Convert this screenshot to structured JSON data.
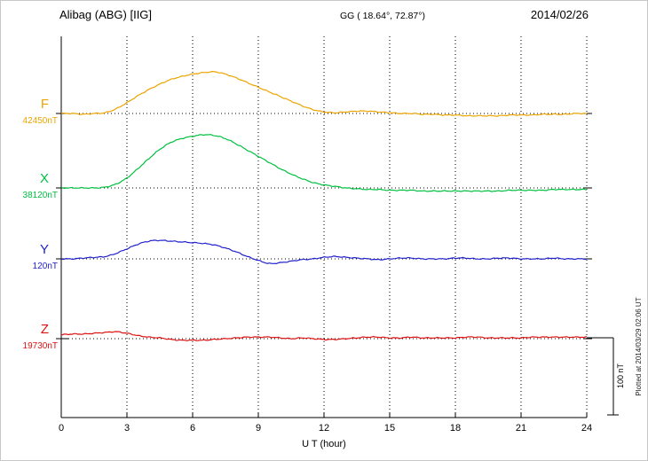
{
  "header": {
    "station": "Alibag (ABG)  [IIG]",
    "coordinates": "GG ( 18.64°,  72.87°)",
    "date": "2014/02/26"
  },
  "x_axis": {
    "label": "U T (hour)",
    "ticks": [
      "0",
      "3",
      "6",
      "9",
      "12",
      "15",
      "18",
      "21",
      "24"
    ]
  },
  "scale_bar": {
    "label": "100 nT",
    "nT": 100
  },
  "plotted_at": "Plotted at 2014/03/29 02:06 UT",
  "chart_data": {
    "type": "line",
    "title": "Alibag (ABG) [IIG] magnetogram 2014/02/26",
    "xlabel": "U T (hour)",
    "x_range": [
      0,
      24
    ],
    "x_ticks": [
      0,
      3,
      6,
      9,
      12,
      15,
      18,
      21,
      24
    ],
    "grid": "dotted",
    "scale_nT_per_division": 100,
    "series": [
      {
        "name": "F",
        "color": "#eea400",
        "baseline_label": "42450nT",
        "baseline_nT": 42450,
        "unit": "nT",
        "points_hour_offsetnT": [
          [
            0,
            0
          ],
          [
            0.5,
            0
          ],
          [
            1,
            -1
          ],
          [
            1.5,
            0
          ],
          [
            2,
            1
          ],
          [
            2.5,
            6
          ],
          [
            3,
            14
          ],
          [
            3.5,
            23
          ],
          [
            4,
            31
          ],
          [
            4.5,
            38
          ],
          [
            5,
            44
          ],
          [
            5.5,
            48
          ],
          [
            6,
            51
          ],
          [
            6.5,
            53
          ],
          [
            7,
            54
          ],
          [
            7.5,
            51
          ],
          [
            8,
            46
          ],
          [
            8.5,
            40
          ],
          [
            9,
            34
          ],
          [
            9.5,
            28
          ],
          [
            10,
            22
          ],
          [
            10.5,
            16
          ],
          [
            11,
            10
          ],
          [
            11.5,
            5
          ],
          [
            12,
            2
          ],
          [
            12.5,
            1
          ],
          [
            13,
            2
          ],
          [
            13.5,
            3
          ],
          [
            14,
            3
          ],
          [
            14.5,
            2
          ],
          [
            15,
            1
          ],
          [
            15.5,
            0
          ],
          [
            16,
            0
          ],
          [
            16.5,
            -1
          ],
          [
            17,
            -1
          ],
          [
            17.5,
            -2
          ],
          [
            18,
            -2
          ],
          [
            18.5,
            -3
          ],
          [
            19,
            -3
          ],
          [
            19.5,
            -3
          ],
          [
            20,
            -3
          ],
          [
            20.5,
            -2
          ],
          [
            21,
            -2
          ],
          [
            21.5,
            -2
          ],
          [
            22,
            -1
          ],
          [
            22.5,
            -1
          ],
          [
            23,
            -1
          ],
          [
            23.5,
            0
          ],
          [
            24,
            0
          ]
        ]
      },
      {
        "name": "X",
        "color": "#00c040",
        "baseline_label": "38120nT",
        "baseline_nT": 38120,
        "unit": "nT",
        "points_hour_offsetnT": [
          [
            0,
            0
          ],
          [
            0.5,
            0
          ],
          [
            1,
            0
          ],
          [
            1.5,
            0
          ],
          [
            2,
            1
          ],
          [
            2.5,
            5
          ],
          [
            3,
            13
          ],
          [
            3.5,
            25
          ],
          [
            4,
            38
          ],
          [
            4.5,
            50
          ],
          [
            5,
            59
          ],
          [
            5.5,
            64
          ],
          [
            6,
            67
          ],
          [
            6.5,
            69
          ],
          [
            7,
            68
          ],
          [
            7.5,
            64
          ],
          [
            8,
            57
          ],
          [
            8.5,
            49
          ],
          [
            9,
            41
          ],
          [
            9.5,
            33
          ],
          [
            10,
            25
          ],
          [
            10.5,
            18
          ],
          [
            11,
            12
          ],
          [
            11.5,
            7
          ],
          [
            12,
            4
          ],
          [
            12.5,
            2
          ],
          [
            13,
            0
          ],
          [
            13.5,
            -1
          ],
          [
            14,
            -2
          ],
          [
            14.5,
            -2
          ],
          [
            15,
            -3
          ],
          [
            15.5,
            -3
          ],
          [
            16,
            -3
          ],
          [
            16.5,
            -4
          ],
          [
            17,
            -4
          ],
          [
            17.5,
            -4
          ],
          [
            18,
            -4
          ],
          [
            18.5,
            -4
          ],
          [
            19,
            -4
          ],
          [
            19.5,
            -4
          ],
          [
            20,
            -4
          ],
          [
            20.5,
            -3
          ],
          [
            21,
            -3
          ],
          [
            21.5,
            -3
          ],
          [
            22,
            -3
          ],
          [
            22.5,
            -2
          ],
          [
            23,
            -2
          ],
          [
            23.5,
            -2
          ],
          [
            24,
            -2
          ]
        ]
      },
      {
        "name": "Y",
        "color": "#2222cc",
        "baseline_label": "120nT",
        "baseline_nT": 120,
        "unit": "nT",
        "points_hour_offsetnT": [
          [
            0,
            0
          ],
          [
            0.5,
            0
          ],
          [
            1,
            1
          ],
          [
            1.5,
            2
          ],
          [
            2,
            3
          ],
          [
            2.5,
            7
          ],
          [
            3,
            13
          ],
          [
            3.5,
            19
          ],
          [
            4,
            23
          ],
          [
            4.5,
            24
          ],
          [
            5,
            23
          ],
          [
            5.5,
            22
          ],
          [
            6,
            21
          ],
          [
            6.5,
            20
          ],
          [
            7,
            18
          ],
          [
            7.5,
            14
          ],
          [
            8,
            9
          ],
          [
            8.5,
            3
          ],
          [
            9,
            -2
          ],
          [
            9.5,
            -6
          ],
          [
            10,
            -5
          ],
          [
            10.5,
            -3
          ],
          [
            11,
            -1
          ],
          [
            11.5,
            0
          ],
          [
            12,
            2
          ],
          [
            12.5,
            3
          ],
          [
            13,
            2
          ],
          [
            13.5,
            1
          ],
          [
            14,
            0
          ],
          [
            14.5,
            -1
          ],
          [
            15,
            0
          ],
          [
            15.5,
            1
          ],
          [
            16,
            1
          ],
          [
            16.5,
            0
          ],
          [
            17,
            0
          ],
          [
            17.5,
            0
          ],
          [
            18,
            1
          ],
          [
            18.5,
            1
          ],
          [
            19,
            0
          ],
          [
            19.5,
            0
          ],
          [
            20,
            1
          ],
          [
            20.5,
            1
          ],
          [
            21,
            0
          ],
          [
            21.5,
            0
          ],
          [
            22,
            0
          ],
          [
            22.5,
            1
          ],
          [
            23,
            0
          ],
          [
            23.5,
            0
          ],
          [
            24,
            0
          ]
        ]
      },
      {
        "name": "Z",
        "color": "#dd1111",
        "baseline_label": "19730nT",
        "baseline_nT": 19730,
        "unit": "nT",
        "points_hour_offsetnT": [
          [
            0,
            5
          ],
          [
            0.5,
            6
          ],
          [
            1,
            6
          ],
          [
            1.5,
            7
          ],
          [
            2,
            8
          ],
          [
            2.5,
            9
          ],
          [
            3,
            7
          ],
          [
            3.5,
            4
          ],
          [
            4,
            2
          ],
          [
            4.5,
            1
          ],
          [
            5,
            -1
          ],
          [
            5.5,
            -2
          ],
          [
            6,
            -2
          ],
          [
            6.5,
            -2
          ],
          [
            7,
            -1
          ],
          [
            7.5,
            0
          ],
          [
            8,
            1
          ],
          [
            8.5,
            2
          ],
          [
            9,
            2
          ],
          [
            9.5,
            2
          ],
          [
            10,
            1
          ],
          [
            10.5,
            0
          ],
          [
            11,
            1
          ],
          [
            11.5,
            0
          ],
          [
            12,
            -1
          ],
          [
            12.5,
            -1
          ],
          [
            13,
            0
          ],
          [
            13.5,
            1
          ],
          [
            14,
            2
          ],
          [
            14.5,
            2
          ],
          [
            15,
            1
          ],
          [
            15.5,
            1
          ],
          [
            16,
            2
          ],
          [
            16.5,
            1
          ],
          [
            17,
            1
          ],
          [
            17.5,
            1
          ],
          [
            18,
            1
          ],
          [
            18.5,
            2
          ],
          [
            19,
            2
          ],
          [
            19.5,
            1
          ],
          [
            20,
            1
          ],
          [
            20.5,
            1
          ],
          [
            21,
            1
          ],
          [
            21.5,
            2
          ],
          [
            22,
            2
          ],
          [
            22.5,
            2
          ],
          [
            23,
            2
          ],
          [
            23.5,
            2
          ],
          [
            24,
            2
          ]
        ]
      }
    ]
  }
}
